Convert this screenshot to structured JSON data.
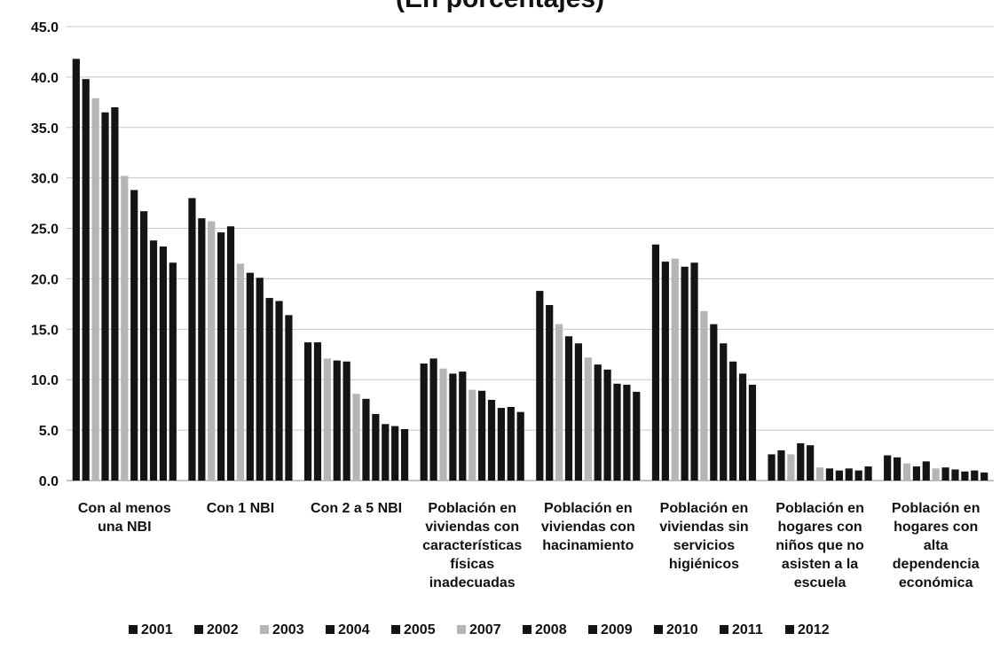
{
  "chart_data": {
    "type": "bar",
    "title": "(En porcentajes)",
    "xlabel": "",
    "ylabel": "",
    "ylim": [
      0,
      45
    ],
    "yticks": [
      "0.0",
      "5.0",
      "10.0",
      "15.0",
      "20.0",
      "25.0",
      "30.0",
      "35.0",
      "40.0",
      "45.0"
    ],
    "grid": true,
    "legend_position": "bottom",
    "categories": [
      [
        "Con al menos",
        "una NBI"
      ],
      [
        "Con 1 NBI"
      ],
      [
        "Con 2 a 5 NBI"
      ],
      [
        "Población en",
        "viviendas con",
        "características",
        "físicas",
        "inadecuadas"
      ],
      [
        "Población en",
        "viviendas con",
        "hacinamiento"
      ],
      [
        "Población en",
        "viviendas sin",
        "servicios",
        "higiénicos"
      ],
      [
        "Población en",
        "hogares con",
        "niños que no",
        "asisten a la",
        "escuela"
      ],
      [
        "Población en",
        "hogares con",
        "alta",
        "dependencia",
        "económica"
      ]
    ],
    "series": [
      {
        "name": "2001",
        "values": [
          41.8,
          28.0,
          13.7,
          11.6,
          18.8,
          23.4,
          2.6,
          2.5
        ]
      },
      {
        "name": "2002",
        "values": [
          39.8,
          26.0,
          13.7,
          12.1,
          17.4,
          21.7,
          3.0,
          2.3
        ]
      },
      {
        "name": "2003",
        "values": [
          37.9,
          25.7,
          12.1,
          11.1,
          15.5,
          22.0,
          2.6,
          1.7
        ]
      },
      {
        "name": "2004",
        "values": [
          36.5,
          24.6,
          11.9,
          10.6,
          14.3,
          21.2,
          3.7,
          1.4
        ]
      },
      {
        "name": "2005",
        "values": [
          37.0,
          25.2,
          11.8,
          10.8,
          13.6,
          21.6,
          3.5,
          1.9
        ]
      },
      {
        "name": "2007",
        "values": [
          30.2,
          21.5,
          8.6,
          9.0,
          12.2,
          16.8,
          1.3,
          1.2
        ]
      },
      {
        "name": "2008",
        "values": [
          28.8,
          20.6,
          8.1,
          8.9,
          11.5,
          15.5,
          1.2,
          1.3
        ]
      },
      {
        "name": "2009",
        "values": [
          26.7,
          20.1,
          6.6,
          8.0,
          11.0,
          13.6,
          1.0,
          1.1
        ]
      },
      {
        "name": "2010",
        "values": [
          23.8,
          18.1,
          5.6,
          7.2,
          9.6,
          11.8,
          1.2,
          0.9
        ]
      },
      {
        "name": "2011",
        "values": [
          23.2,
          17.8,
          5.4,
          7.3,
          9.5,
          10.6,
          1.0,
          1.0
        ]
      },
      {
        "name": "2012",
        "values": [
          21.6,
          16.4,
          5.1,
          6.8,
          8.8,
          9.5,
          1.4,
          0.8
        ]
      }
    ],
    "colors": {
      "dark": "#141414",
      "light": "#b5b5b5",
      "grid": "#c8c8c8",
      "axis": "#888888",
      "text": "#111111"
    },
    "series_shades": [
      "dark",
      "dark",
      "light",
      "dark",
      "dark",
      "light",
      "dark",
      "dark",
      "dark",
      "dark",
      "dark"
    ]
  }
}
